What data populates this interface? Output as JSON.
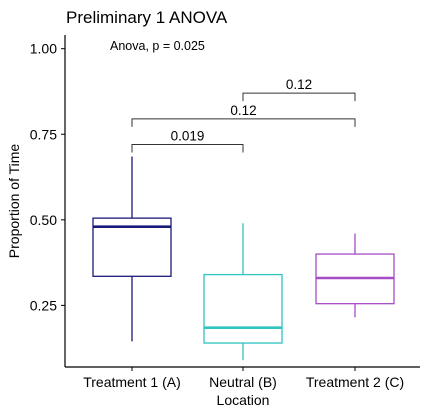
{
  "chart_data": {
    "type": "box",
    "title": "Preliminary 1 ANOVA",
    "xlabel": "Location",
    "ylabel": "Proportion of Time",
    "ylim": [
      0.07,
      1.04
    ],
    "yticks": [
      "0.25",
      "0.50",
      "0.75",
      "1.00"
    ],
    "ytick_values": [
      0.25,
      0.5,
      0.75,
      1.0
    ],
    "categories": [
      "Treatment 1 (A)",
      "Neutral (B)",
      "Treatment 2 (C)"
    ],
    "boxes": [
      {
        "category": "Treatment 1 (A)",
        "min": 0.145,
        "q1": 0.335,
        "median": 0.48,
        "q3": 0.505,
        "max": 0.685,
        "color": "#1a1a7a"
      },
      {
        "category": "Neutral (B)",
        "min": 0.09,
        "q1": 0.14,
        "median": 0.185,
        "q3": 0.34,
        "max": 0.49,
        "color": "#2ec4c0"
      },
      {
        "category": "Treatment 2 (C)",
        "min": 0.215,
        "q1": 0.255,
        "median": 0.33,
        "q3": 0.4,
        "max": 0.46,
        "color": "#a64cc7"
      }
    ],
    "annotation": "Anova, p = 0.025",
    "comparisons": [
      {
        "from": "Treatment 1 (A)",
        "to": "Neutral (B)",
        "label": "0.019",
        "y": 0.72
      },
      {
        "from": "Treatment 1 (A)",
        "to": "Treatment 2 (C)",
        "label": "0.12",
        "y": 0.795
      },
      {
        "from": "Neutral (B)",
        "to": "Treatment 2 (C)",
        "label": "0.12",
        "y": 0.87
      }
    ],
    "grid": false
  }
}
